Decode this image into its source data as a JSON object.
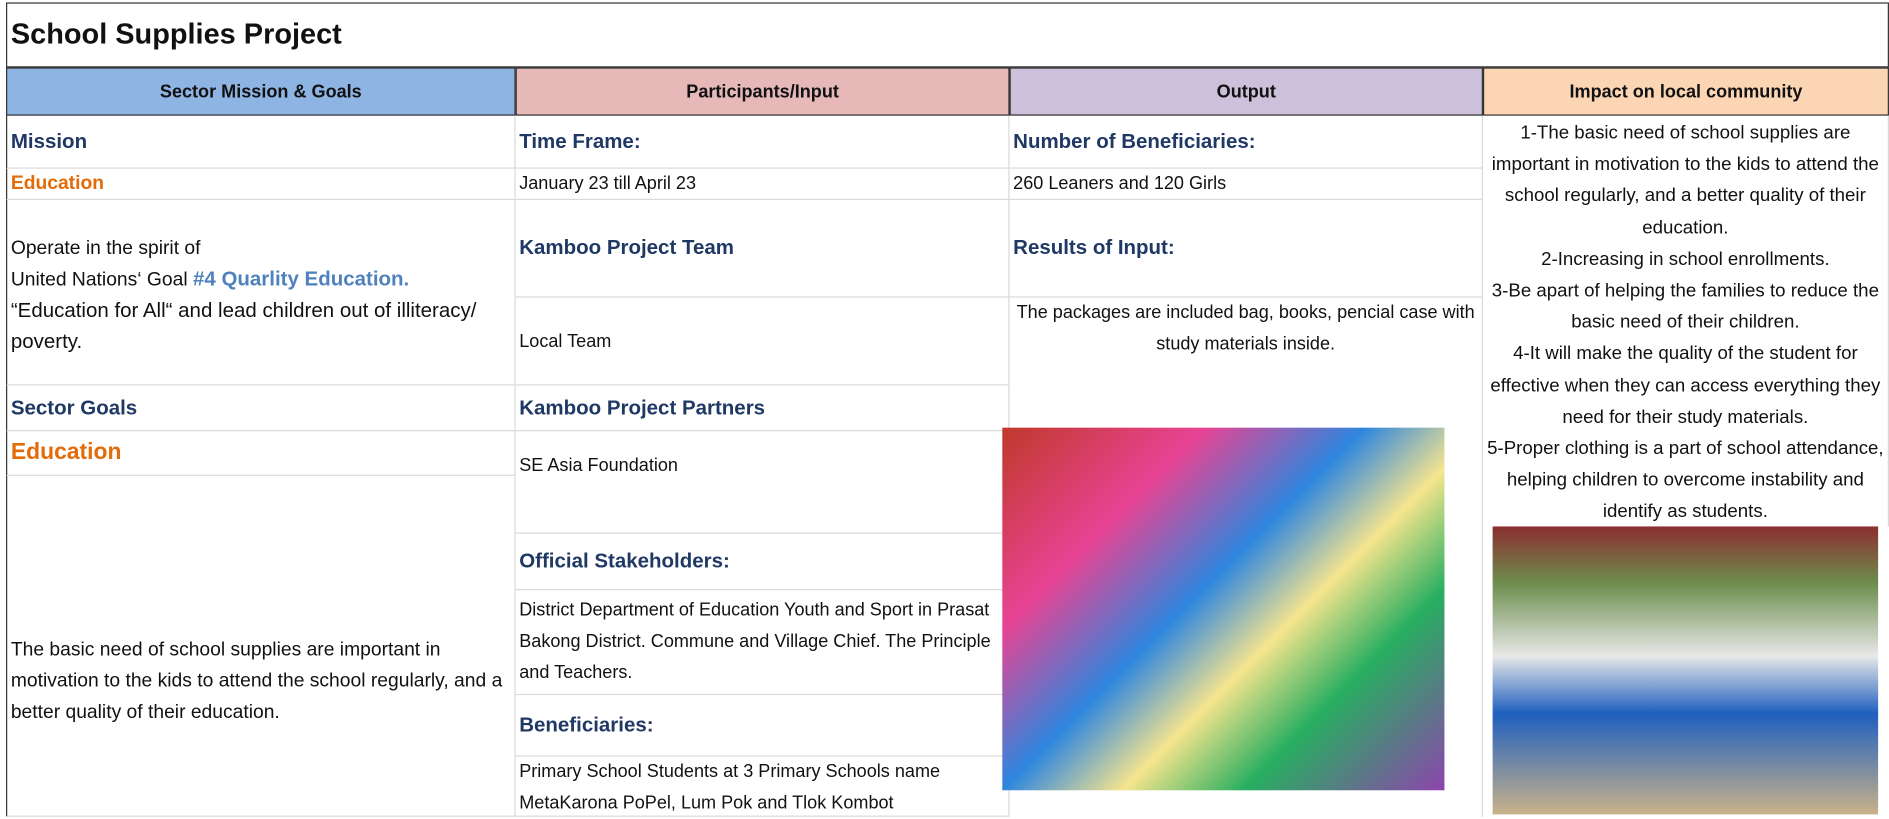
{
  "header": {
    "title": "School Supplies Project",
    "columns": [
      "Sector Mission & Goals",
      "Participants/Input",
      "Output",
      "Impact on local community"
    ]
  },
  "mission": {
    "label": "Mission",
    "value": "Education",
    "text_intro": "Operate in the spirit of",
    "text_goal_prefix": "United Nations‘ Goal",
    "text_goal": "#4 Quarlity Education.",
    "text_rest": "“Education for All“ and lead children out of illiteracy/ poverty."
  },
  "sector_goals": {
    "label": "Sector Goals",
    "value": "Education",
    "text": "The basic need of school supplies are important in motivation to the kids to attend the school regularly, and a better quality of their education."
  },
  "participants": [
    {
      "label": "Time Frame:",
      "value": "January 23 till April 23"
    },
    {
      "label": "Kamboo Project Team",
      "value": "Local Team"
    },
    {
      "label": "Kamboo Project Partners",
      "value": "SE Asia Foundation"
    },
    {
      "label": "Official Stakeholders:",
      "value": "District Department of Education Youth and Sport in Prasat Bakong District. Commune and Village Chief. The Principle and Teachers."
    },
    {
      "label": "Beneficiaries:",
      "value": "Primary School Students at 3 Primary Schools name MetaKarona PoPel, Lum Pok and Tlok Kombot"
    }
  ],
  "output": [
    {
      "label": "Number of Beneficiaries:",
      "value": "260 Leaners and 120 Girls"
    },
    {
      "label": "Results of Input:",
      "value": "The packages are included bag, books, pencial case with study materials inside."
    }
  ],
  "impact": [
    "1-The basic need of school supplies are important in motivation to the kids to attend the school regularly, and a better quality of their education.",
    "2-Increasing in school enrollments.",
    "3-Be apart of helping the families to reduce the basic need of their children.",
    "4-It will make the quality of the student for effective when they can access everything they need for their study materials.",
    "5-Proper clothing is a part of school attendance, helping children to overcome instability and identify as students."
  ]
}
